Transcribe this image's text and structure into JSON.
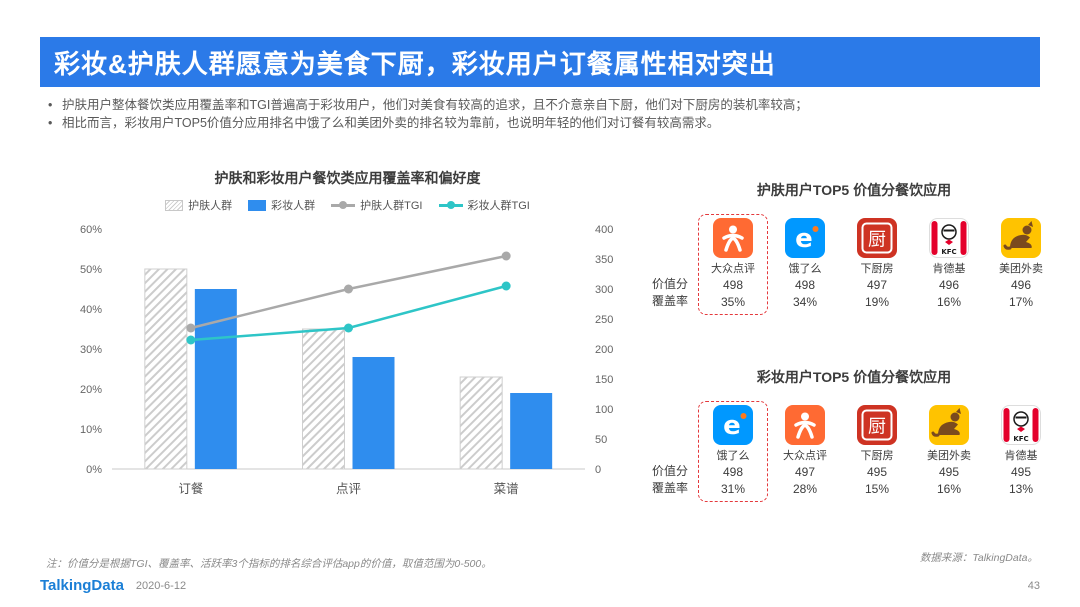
{
  "header": {
    "title": "彩妆&护肤人群愿意为美食下厨，彩妆用户订餐属性相对突出",
    "bullets": [
      "护肤用户整体餐饮类应用覆盖率和TGI普遍高于彩妆用户，他们对美食有较高的追求，且不介意亲自下厨，他们对下厨房的装机率较高；",
      "相比而言，彩妆用户TOP5价值分应用排名中饿了么和美团外卖的排名较为靠前，也说明年轻的他们对订餐有较高需求。"
    ]
  },
  "chart_data": {
    "type": "combo-bar-line",
    "title": "护肤和彩妆用户餐饮类应用覆盖率和偏好度",
    "categories": [
      "订餐",
      "点评",
      "菜谱"
    ],
    "series": [
      {
        "name": "护肤人群",
        "render": "bar",
        "axis": "left",
        "style": "hatched",
        "color": "#d9d9d9",
        "values": [
          50,
          35,
          23
        ],
        "unit": "%"
      },
      {
        "name": "彩妆人群",
        "render": "bar",
        "axis": "left",
        "style": "solid",
        "color": "#2f8dee",
        "values": [
          45,
          28,
          19
        ],
        "unit": "%"
      },
      {
        "name": "护肤人群TGI",
        "render": "line",
        "axis": "right",
        "color": "#a9a9a9",
        "values": [
          235,
          300,
          355
        ]
      },
      {
        "name": "彩妆人群TGI",
        "render": "line",
        "axis": "right",
        "color": "#2ec5c7",
        "values": [
          215,
          235,
          305
        ]
      }
    ],
    "left_axis": {
      "min": 0,
      "max": 60,
      "tick_values": [
        0,
        10,
        20,
        30,
        40,
        50,
        60
      ],
      "tick_labels": [
        "0%",
        "10%",
        "20%",
        "30%",
        "40%",
        "50%",
        "60%"
      ]
    },
    "right_axis": {
      "min": 0,
      "max": 400,
      "tick_values": [
        0,
        50,
        100,
        150,
        200,
        250,
        300,
        350,
        400
      ],
      "tick_labels": [
        "0",
        "50",
        "100",
        "150",
        "200",
        "250",
        "300",
        "350",
        "400"
      ]
    },
    "grid": false,
    "legend_position": "top"
  },
  "top5_skincare": {
    "title": "护肤用户TOP5 价值分餐饮应用",
    "row_labels": [
      "价值分",
      "覆盖率"
    ],
    "apps": [
      {
        "name": "大众点评",
        "icon": "dianping-icon",
        "score": "498",
        "coverage": "35%",
        "highlighted": true
      },
      {
        "name": "饿了么",
        "icon": "eleme-icon",
        "score": "498",
        "coverage": "34%",
        "highlighted": false
      },
      {
        "name": "下厨房",
        "icon": "xiachufang-icon",
        "score": "497",
        "coverage": "19%",
        "highlighted": false
      },
      {
        "name": "肯德基",
        "icon": "kfc-icon",
        "score": "496",
        "coverage": "16%",
        "highlighted": false
      },
      {
        "name": "美团外卖",
        "icon": "meituan-icon",
        "score": "496",
        "coverage": "17%",
        "highlighted": false
      }
    ]
  },
  "top5_makeup": {
    "title": "彩妆用户TOP5 价值分餐饮应用",
    "row_labels": [
      "价值分",
      "覆盖率"
    ],
    "apps": [
      {
        "name": "饿了么",
        "icon": "eleme-icon",
        "score": "498",
        "coverage": "31%",
        "highlighted": true
      },
      {
        "name": "大众点评",
        "icon": "dianping-icon",
        "score": "497",
        "coverage": "28%",
        "highlighted": false
      },
      {
        "name": "下厨房",
        "icon": "xiachufang-icon",
        "score": "495",
        "coverage": "15%",
        "highlighted": false
      },
      {
        "name": "美团外卖",
        "icon": "meituan-icon",
        "score": "495",
        "coverage": "16%",
        "highlighted": false
      },
      {
        "name": "肯德基",
        "icon": "kfc-icon",
        "score": "495",
        "coverage": "13%",
        "highlighted": false
      }
    ]
  },
  "footer": {
    "note": "注：价值分是根据TGI、覆盖率、活跃率3个指标的排名综合评估app的价值，取值范围为0-500。",
    "source": "数据来源：TalkingData。",
    "logo": "TalkingData",
    "date": "2020-6-12",
    "page": "43"
  },
  "colors": {
    "title_bar": "#2b7ae8",
    "bar_blue": "#2f8dee",
    "tgi_gray": "#a9a9a9",
    "tgi_teal": "#2ec5c7",
    "highlight_red": "#e4393c",
    "logo_blue": "#1b7fd6"
  }
}
